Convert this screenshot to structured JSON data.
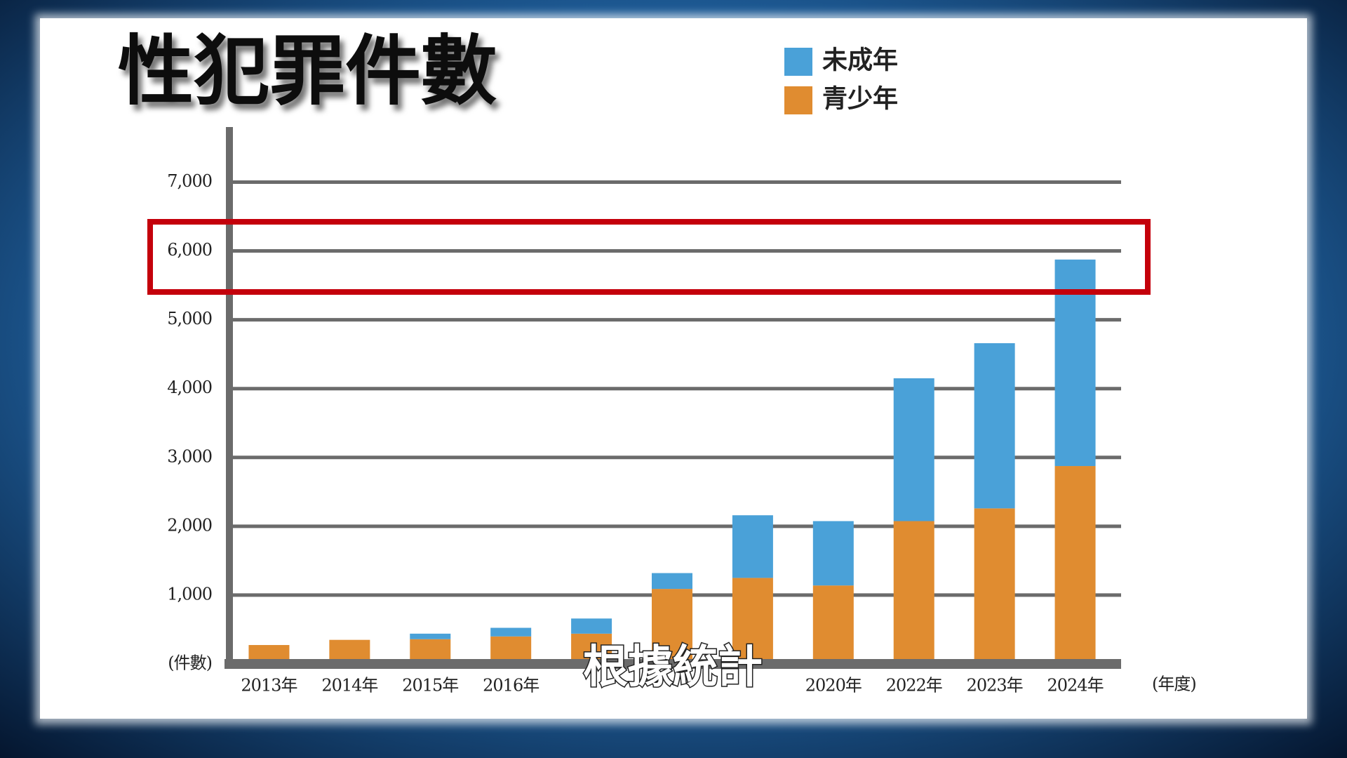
{
  "chart_data": {
    "type": "stacked-bar",
    "title": "性犯罪件數",
    "x_label": "(年度)",
    "caption": "根據統計",
    "categories": [
      "2013年",
      "2014年",
      "2015年",
      "2016年",
      null,
      null,
      null,
      "2020年",
      "2022年",
      "2023年",
      "2024年"
    ],
    "series": [
      {
        "name": "未成年",
        "color": "#4aa1d8",
        "values": [
          0,
          0,
          80,
          125,
          220,
          230,
          910,
          935,
          2075,
          2400,
          3000
        ]
      },
      {
        "name": "青少年",
        "color": "#e08c30",
        "values": [
          275,
          350,
          360,
          400,
          440,
          1090,
          1250,
          1140,
          2075,
          2260,
          2875
        ]
      }
    ],
    "ylim": [
      0,
      7800
    ],
    "yticks": [
      {
        "value": 0,
        "label": "(件數)"
      },
      {
        "value": 1000,
        "label": "1,000"
      },
      {
        "value": 2000,
        "label": "2,000"
      },
      {
        "value": 3000,
        "label": "3,000"
      },
      {
        "value": 4000,
        "label": "4,000"
      },
      {
        "value": 5000,
        "label": "5,000"
      },
      {
        "value": 6000,
        "label": "6,000"
      },
      {
        "value": 7000,
        "label": "7,000"
      }
    ],
    "grid": true
  }
}
